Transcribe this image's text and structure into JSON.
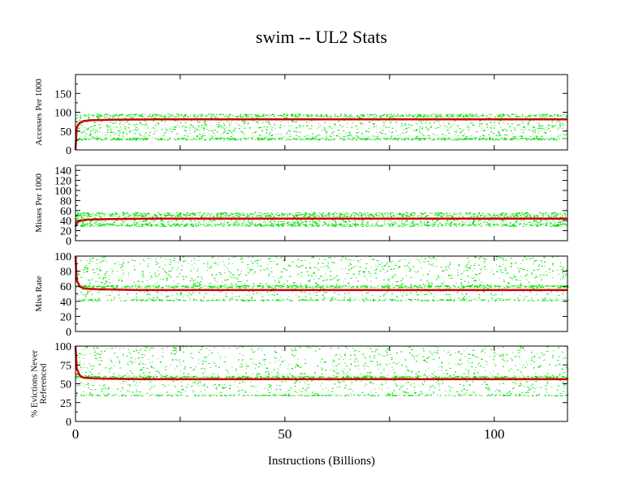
{
  "chart_data": {
    "type": "scatter",
    "title": "swim -- UL2  Stats",
    "xlabel": "Instructions (Billions)",
    "xlim": [
      0,
      117.5
    ],
    "xticks": [
      0,
      50,
      100
    ],
    "xminor": [
      25,
      75
    ],
    "colors": {
      "scatter": "#00dd00",
      "line": "#cc0000"
    },
    "panels": [
      {
        "ylabel": [
          "Accesses Per 1000"
        ],
        "ylim": [
          0,
          200
        ],
        "yticks": [
          0,
          50,
          100,
          150
        ],
        "scatter_bands": [
          {
            "level": 30,
            "spread": 3,
            "density": 0.3
          },
          {
            "level": 92,
            "spread": 4,
            "density": 0.3
          },
          {
            "range": [
              35,
              88
            ],
            "density": 0.4
          }
        ],
        "mean_line": {
          "x": [
            0,
            0.3,
            1,
            2,
            4,
            8,
            20,
            117.5
          ],
          "y": [
            0,
            60,
            72,
            77,
            79,
            80,
            81,
            81
          ]
        }
      },
      {
        "ylabel": [
          "Misses Per 1000"
        ],
        "ylim": [
          0,
          150
        ],
        "yticks": [
          0,
          20,
          40,
          60,
          80,
          100,
          120,
          140
        ],
        "scatter_bands": [
          {
            "level": 32,
            "spread": 3,
            "density": 0.35
          },
          {
            "level": 53,
            "spread": 4,
            "density": 0.35
          },
          {
            "range": [
              36,
              50
            ],
            "density": 0.3
          }
        ],
        "mean_line": {
          "x": [
            0,
            0.3,
            1,
            3,
            8,
            20,
            117.5
          ],
          "y": [
            28,
            36,
            40,
            42,
            43,
            44,
            44
          ]
        }
      },
      {
        "ylabel": [
          "Miss Rate"
        ],
        "ylim": [
          0,
          100
        ],
        "yticks": [
          0,
          20,
          40,
          60,
          80,
          100
        ],
        "scatter_bands": [
          {
            "level": 60,
            "spread": 1.5,
            "density": 0.3
          },
          {
            "level": 42,
            "spread": 1,
            "density": 0.15
          },
          {
            "range": [
              42,
              100
            ],
            "density": 0.55
          }
        ],
        "mean_line": {
          "x": [
            0,
            0.3,
            1,
            2,
            5,
            15,
            117.5
          ],
          "y": [
            100,
            68,
            60,
            57,
            56,
            55,
            55
          ]
        }
      },
      {
        "ylabel": [
          "% Evictions Never",
          "Referenced"
        ],
        "ylim": [
          0,
          100
        ],
        "yticks": [
          0,
          25,
          50,
          75,
          100
        ],
        "scatter_bands": [
          {
            "level": 59,
            "spread": 1.5,
            "density": 0.3
          },
          {
            "level": 35,
            "spread": 0.6,
            "density": 0.15
          },
          {
            "range": [
              35,
              100
            ],
            "density": 0.55
          }
        ],
        "mean_line": {
          "x": [
            0,
            0.3,
            1,
            2,
            5,
            15,
            117.5
          ],
          "y": [
            100,
            70,
            61,
            58,
            57,
            56,
            56
          ]
        }
      }
    ]
  }
}
